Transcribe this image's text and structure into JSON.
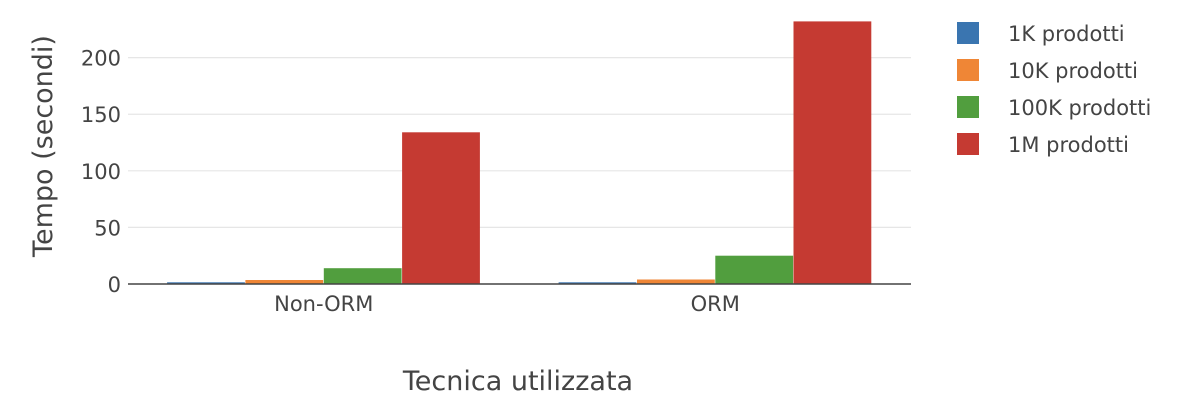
{
  "chart_data": {
    "type": "bar",
    "title": "",
    "xlabel": "Tecnica utilizzata",
    "ylabel": "Tempo (secondi)",
    "categories": [
      "Non-ORM",
      "ORM"
    ],
    "ylim": [
      0,
      235
    ],
    "yticks": [
      0,
      50,
      100,
      150,
      200
    ],
    "grid": true,
    "legend_position": "right",
    "series": [
      {
        "name": "1K prodotti",
        "color": "#3a75b0",
        "values": [
          1.5,
          1.5
        ]
      },
      {
        "name": "10K prodotti",
        "color": "#ef8636",
        "values": [
          3.5,
          4
        ]
      },
      {
        "name": "100K prodotti",
        "color": "#519e3e",
        "values": [
          14,
          25
        ]
      },
      {
        "name": "1M prodotti",
        "color": "#c53a32",
        "values": [
          134,
          232
        ]
      }
    ]
  }
}
